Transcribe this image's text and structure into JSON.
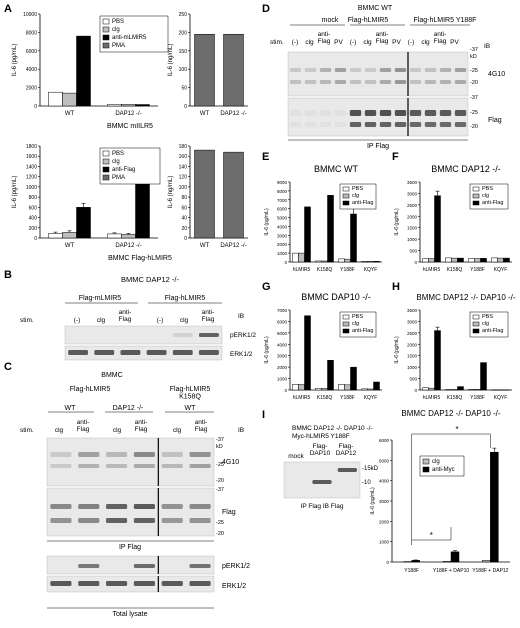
{
  "panels": {
    "A": {
      "letter": "A",
      "caption_top": "BMMC mIILR5",
      "caption_bottom": "BMMC Flag-hLMIR5"
    },
    "B": {
      "letter": "B",
      "title": "BMMC DAP12 -/-",
      "groups": [
        "Flag-mLMIR5",
        "Flag-hLMIR5"
      ],
      "stim_label": "stim.",
      "lanes": [
        "(-)",
        "clg",
        "anti-\nFlag",
        "(-)",
        "clg",
        "anti-\nFlag"
      ],
      "ib_label": "IB",
      "blots": [
        "pERK1/2",
        "ERK1/2"
      ]
    },
    "C": {
      "letter": "C",
      "title": "BMMC",
      "groups": [
        "Flag-hLMIR5",
        "Flag-hLMIR5\nK158Q"
      ],
      "subgroups": [
        "WT",
        "DAP12 -/-",
        "WT"
      ],
      "stim_label": "stim.",
      "lanes": [
        "clg",
        "anti-\nFlag",
        "clg",
        "anti-\nFlag",
        "clg",
        "anti-\nFlag"
      ],
      "ib_label": "IB",
      "blots": [
        "4G10",
        "Flag",
        "pERK1/2",
        "ERK1/2"
      ],
      "ip_label": "IP Flag",
      "lysate_label": "Total lysate",
      "mw": [
        "-37",
        "kD",
        "-25",
        "-20",
        "-37",
        "-25",
        "-20"
      ]
    },
    "D": {
      "letter": "D",
      "title": "BMMC WT",
      "subtitle": "Flag-hLMIR5",
      "groups": [
        "mock",
        "Flag-hLMIR5 Y188F"
      ],
      "stim_label": "stim.",
      "lanes": [
        "(-)",
        "clg",
        "anti-\nFlag",
        "PV",
        "(-)",
        "clg",
        "anti-\nFlag",
        "PV",
        "(-)",
        "clg",
        "anti-\nFlag",
        "PV"
      ],
      "ib_label": "IB",
      "blots": [
        "4G10",
        "Flag"
      ],
      "ip_label": "IP Flag",
      "mw": [
        "-37",
        "kD",
        "-25",
        "-20",
        "-37",
        "-25",
        "-20"
      ]
    },
    "I": {
      "letter": "I",
      "lines": [
        "BMMC DAP12 -/- DAP10 -/-",
        "Myc-hLMIR5 Y188F"
      ],
      "lanes": [
        "mock",
        "Flag-\nDAP10",
        "Flag-\nDAP12"
      ],
      "mw": [
        "-15kD",
        "-10"
      ],
      "ip_label": "IP Flag  IB Flag"
    }
  },
  "chart_data": [
    {
      "id": "A1",
      "type": "bar",
      "title": "",
      "categories": [
        "WT",
        "DAP12 -/-"
      ],
      "series": [
        {
          "name": "PBS",
          "values": [
            1500,
            180
          ]
        },
        {
          "name": "clg",
          "values": [
            1400,
            170
          ]
        },
        {
          "name": "anti-mLMIR5",
          "values": [
            7600,
            160
          ]
        },
        {
          "name": "PMA",
          "values": [
            null,
            null
          ]
        }
      ],
      "ylabel": "IL-6 (pg/mL)",
      "ylim": [
        0,
        10000
      ],
      "yticks": [
        0,
        2000,
        4000,
        6000,
        8000,
        10000
      ],
      "legend": "top-right"
    },
    {
      "id": "A2",
      "type": "bar",
      "title": "",
      "categories": [
        "WT",
        "DAP12 -/-"
      ],
      "values": [
        195,
        195
      ],
      "ylabel": "IL-6 (ng/mL)",
      "ylim": [
        0,
        250
      ],
      "yticks": [
        0,
        50,
        100,
        150,
        200,
        250
      ]
    },
    {
      "id": "A3",
      "type": "bar",
      "title": "",
      "categories": [
        "WT",
        "DAP12 -/-"
      ],
      "series": [
        {
          "name": "PBS",
          "values": [
            90,
            80
          ]
        },
        {
          "name": "clg",
          "values": [
            110,
            70
          ]
        },
        {
          "name": "anti-Flag",
          "values": [
            600,
            1180
          ]
        },
        {
          "name": "PMA",
          "values": [
            null,
            null
          ]
        }
      ],
      "errors": [
        [
          25,
          20
        ],
        [
          30,
          20
        ],
        [
          80,
          180
        ]
      ],
      "ylabel": "IL-6 (pg/mL)",
      "ylim": [
        0,
        1800
      ],
      "yticks": [
        0,
        200,
        400,
        600,
        800,
        1000,
        1200,
        1400,
        1600,
        1800
      ],
      "legend": "top-right"
    },
    {
      "id": "A4",
      "type": "bar",
      "title": "",
      "categories": [
        "WT",
        "DAP12 -/-"
      ],
      "values": [
        172,
        168
      ],
      "ylabel": "IL-6 (ng/mL)",
      "ylim": [
        0,
        180
      ],
      "yticks": [
        0,
        20,
        40,
        60,
        80,
        100,
        120,
        140,
        160,
        180
      ]
    },
    {
      "id": "E",
      "type": "bar",
      "title": "BMMC WT",
      "categories": [
        "hLMIR5",
        "K158Q",
        "Y188F",
        "KQYF"
      ],
      "series": [
        {
          "name": "PBS",
          "values": [
            1000,
            120,
            350,
            80
          ]
        },
        {
          "name": "clg",
          "values": [
            1000,
            110,
            320,
            70
          ]
        },
        {
          "name": "anti-Flag",
          "values": [
            6200,
            7500,
            5400,
            80
          ]
        }
      ],
      "errors": [
        [
          0,
          0,
          0,
          0
        ],
        [
          0,
          0,
          0,
          0
        ],
        [
          0,
          0,
          800,
          0
        ]
      ],
      "ylabel": "IL-6 (pg/mL)",
      "ylim": [
        0,
        9000
      ],
      "yticks": [
        0,
        1000,
        2000,
        3000,
        4000,
        5000,
        6000,
        7000,
        8000,
        9000
      ],
      "legend": "top-right"
    },
    {
      "id": "F",
      "type": "bar",
      "title": "BMMC DAP12 -/-",
      "categories": [
        "hLMIR5",
        "K158Q",
        "Y188F",
        "KQYF"
      ],
      "series": [
        {
          "name": "PBS",
          "values": [
            150,
            180,
            150,
            180
          ]
        },
        {
          "name": "clg",
          "values": [
            150,
            170,
            150,
            170
          ]
        },
        {
          "name": "anti-Flag",
          "values": [
            2900,
            170,
            160,
            170
          ]
        }
      ],
      "errors": [
        [
          0,
          0,
          0,
          0
        ],
        [
          0,
          0,
          0,
          0
        ],
        [
          200,
          0,
          0,
          0
        ]
      ],
      "ylabel": "IL-6 (pg/mL)",
      "ylim": [
        0,
        3500
      ],
      "yticks": [
        0,
        500,
        1000,
        1500,
        2000,
        2500,
        3000,
        3500
      ],
      "legend": "top-right"
    },
    {
      "id": "G",
      "type": "bar",
      "title": "BMMC DAP10 -/-",
      "categories": [
        "hLMIR5",
        "K158Q",
        "Y188F",
        "KQYF"
      ],
      "series": [
        {
          "name": "PBS",
          "values": [
            500,
            150,
            500,
            100
          ]
        },
        {
          "name": "clg",
          "values": [
            480,
            140,
            450,
            90
          ]
        },
        {
          "name": "anti-Flag",
          "values": [
            6500,
            2600,
            2000,
            700
          ]
        }
      ],
      "ylabel": "IL-6 (pg/mL)",
      "ylim": [
        0,
        7000
      ],
      "yticks": [
        0,
        1000,
        2000,
        3000,
        4000,
        5000,
        6000,
        7000
      ],
      "legend": "top-right"
    },
    {
      "id": "H",
      "type": "bar",
      "title": "BMMC DAP12 -/- DAP10 -/-",
      "categories": [
        "hLMIR5",
        "K158Q",
        "Y188F",
        "KQYF"
      ],
      "series": [
        {
          "name": "PBS",
          "values": [
            100,
            20,
            30,
            10
          ]
        },
        {
          "name": "clg",
          "values": [
            80,
            20,
            30,
            10
          ]
        },
        {
          "name": "anti-Flag",
          "values": [
            2600,
            150,
            1200,
            10
          ]
        }
      ],
      "errors": [
        [
          0,
          0,
          0,
          0
        ],
        [
          0,
          0,
          0,
          0
        ],
        [
          150,
          0,
          0,
          0
        ]
      ],
      "ylabel": "IL-6 (pg/mL)",
      "ylim": [
        0,
        3500
      ],
      "yticks": [
        0,
        500,
        1000,
        1500,
        2000,
        2500,
        3000,
        3500
      ],
      "legend": "top-right"
    },
    {
      "id": "I",
      "type": "bar",
      "title": "BMMC DAP12 -/- DAP10 -/-",
      "categories": [
        "Y188F",
        "Y188F + DAP10",
        "Y188F + DAP12"
      ],
      "series": [
        {
          "name": "clg",
          "values": [
            20,
            30,
            80
          ]
        },
        {
          "name": "anti-Myc",
          "values": [
            80,
            500,
            5400
          ]
        }
      ],
      "errors": [
        [
          0,
          0,
          0
        ],
        [
          20,
          60,
          200
        ]
      ],
      "ylabel": "IL-6 (pg/mL)",
      "ylim": [
        0,
        6000
      ],
      "yticks": [
        0,
        1000,
        2000,
        3000,
        4000,
        5000,
        6000
      ],
      "legend": "top-left",
      "annotations": [
        "*",
        "*"
      ]
    }
  ],
  "colors": {
    "PBS": "#ffffff",
    "clg": "#bdbdbd",
    "stim": "#000000",
    "PMA": "#6d6d6d",
    "band": "#4a4a4a"
  }
}
